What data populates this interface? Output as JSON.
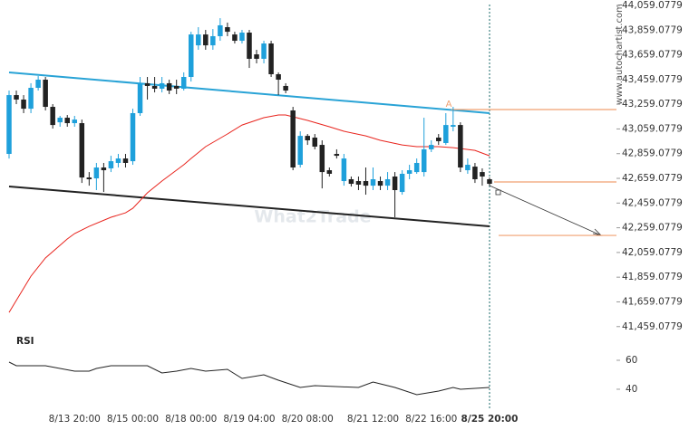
{
  "chart_data": {
    "type": "candlestick",
    "watermark": "What2Trade",
    "source": "www.autochartist.com",
    "up_color": "#1ea0db",
    "down_color": "#222222",
    "categories": [
      null,
      null,
      null,
      null,
      null,
      null,
      null,
      null,
      null,
      "8/13 20:00",
      null,
      null,
      null,
      null,
      null,
      null,
      null,
      "8/15 00:00",
      null,
      null,
      null,
      null,
      null,
      null,
      null,
      "8/18 00:00",
      null,
      null,
      null,
      null,
      null,
      null,
      null,
      "8/19 04:00",
      null,
      null,
      null,
      null,
      null,
      null,
      null,
      "8/20 08:00",
      null,
      null,
      null,
      null,
      null,
      null,
      null,
      null,
      "8/21 12:00",
      null,
      null,
      null,
      null,
      null,
      null,
      null,
      "8/22 16:00",
      null,
      null,
      null,
      null,
      null,
      null,
      null,
      "8/25 20:00"
    ],
    "open": [
      42857,
      43333,
      43297,
      43223,
      43392,
      43458,
      43238,
      43113,
      43150,
      43106,
      43106,
      42666,
      42659,
      42747,
      42740,
      42784,
      42820,
      42798,
      43187,
      43429,
      43407,
      43385,
      43429,
      43407,
      43385,
      43480,
      43736,
      43824,
      43736,
      43810,
      43883,
      43824,
      43773,
      43839,
      43663,
      43627,
      43751,
      43502,
      43407,
      43209,
      42769,
      43003,
      42989,
      42930,
      42725,
      42857,
      42637,
      42652,
      42637,
      42637,
      42600,
      42637,
      42600,
      42674,
      42549,
      42696,
      42710,
      42710,
      42894,
      42989,
      42945,
      43077,
      43091,
      42725,
      42754,
      42710,
      42652
    ],
    "high": [
      43370,
      43370,
      43333,
      43429,
      43487,
      43480,
      43260,
      43165,
      43172,
      43165,
      43135,
      42710,
      42784,
      42784,
      42842,
      42857,
      42857,
      43223,
      43480,
      43480,
      43480,
      43480,
      43458,
      43458,
      43517,
      43846,
      43883,
      43861,
      43868,
      43956,
      43920,
      43846,
      43861,
      43861,
      43700,
      43773,
      43773,
      43517,
      43429,
      43238,
      43040,
      43018,
      43018,
      42967,
      42747,
      42894,
      42857,
      42674,
      42674,
      42747,
      42747,
      42674,
      42710,
      42710,
      42725,
      42769,
      42820,
      43150,
      42967,
      43018,
      43187,
      43238,
      43113,
      42820,
      42784,
      42740,
      42666
    ],
    "low": [
      42820,
      43260,
      43187,
      43187,
      43370,
      43209,
      43062,
      43077,
      43077,
      43077,
      42622,
      42600,
      42564,
      42549,
      42710,
      42747,
      42747,
      42769,
      43165,
      43297,
      43355,
      43355,
      43341,
      43341,
      43370,
      43443,
      43700,
      43700,
      43700,
      43773,
      43810,
      43751,
      43751,
      43553,
      43590,
      43590,
      43480,
      43333,
      43348,
      42725,
      42747,
      42930,
      42894,
      42578,
      42674,
      42820,
      42600,
      42593,
      42564,
      42527,
      42564,
      42564,
      42564,
      42344,
      42527,
      42652,
      42696,
      42674,
      42872,
      42930,
      42930,
      43040,
      42710,
      42696,
      42622,
      42600,
      42600
    ],
    "close": [
      43333,
      43297,
      43223,
      43392,
      43458,
      43238,
      43091,
      43150,
      43106,
      43135,
      42666,
      42652,
      42747,
      42725,
      42798,
      42820,
      42784,
      43187,
      43429,
      43407,
      43385,
      43429,
      43370,
      43385,
      43480,
      43824,
      43824,
      43736,
      43810,
      43898,
      43846,
      43773,
      43839,
      43627,
      43627,
      43751,
      43502,
      43458,
      43370,
      42747,
      43003,
      42967,
      42916,
      42710,
      42696,
      42842,
      42820,
      42615,
      42608,
      42600,
      42652,
      42600,
      42652,
      42564,
      42696,
      42725,
      42784,
      42894,
      42930,
      42960,
      43091,
      43091,
      42747,
      42769,
      42652,
      42674,
      42615
    ],
    "ma": {
      "color": "#e8231c",
      "x": [
        0,
        3,
        5,
        8,
        9,
        11,
        14,
        16,
        17,
        19,
        21,
        24,
        25,
        27,
        30,
        32,
        35,
        37,
        38,
        41,
        44,
        46,
        49,
        51,
        54,
        56,
        59,
        61,
        64,
        66
      ],
      "values": [
        41574,
        41867,
        42014,
        42168,
        42212,
        42270,
        42344,
        42380,
        42417,
        42542,
        42637,
        42769,
        42820,
        42916,
        43018,
        43091,
        43150,
        43172,
        43172,
        43128,
        43077,
        43040,
        43003,
        42967,
        42930,
        42916,
        42916,
        42908,
        42886,
        42842
      ]
    },
    "channel_upper": {
      "color": "#29a3d6",
      "x": [
        0,
        66
      ],
      "values": [
        43517,
        43187
      ]
    },
    "channel_lower": {
      "color": "#222222",
      "x": [
        0,
        66
      ],
      "values": [
        42593,
        42271
      ]
    },
    "levels": {
      "color": "#f0a070",
      "values": [
        43216,
        42630,
        42197
      ]
    },
    "pattern_label": "A",
    "ylim": [
      41428,
      44103
    ],
    "yticks": [
      {
        "value": 44059.0779,
        "label": "44,059.0779"
      },
      {
        "value": 43859.0779,
        "label": "43,859.0779"
      },
      {
        "value": 43659.0779,
        "label": "43,659.0779"
      },
      {
        "value": 43459.0779,
        "label": "43,459.0779"
      },
      {
        "value": 43259.0779,
        "label": "43,259.0779"
      },
      {
        "value": 43059.0779,
        "label": "43,059.0779"
      },
      {
        "value": 42859.0779,
        "label": "42,859.0779"
      },
      {
        "value": 42659.0779,
        "label": "42,659.0779"
      },
      {
        "value": 42459.0779,
        "label": "42,459.0779"
      },
      {
        "value": 42259.0779,
        "label": "42,259.0779"
      },
      {
        "value": 42059.0779,
        "label": "42,059.0779"
      },
      {
        "value": 41859.0779,
        "label": "41,859.0779"
      },
      {
        "value": 41659.0779,
        "label": "41,659.0779"
      },
      {
        "value": 41459.0779,
        "label": "41,459.0779"
      }
    ],
    "rsi": {
      "title": "RSI",
      "color": "#222222",
      "ylim": [
        30.6,
        77.5
      ],
      "yticks": [
        60,
        40
      ],
      "x": [
        0,
        1,
        5,
        9,
        11,
        12,
        14,
        19,
        21,
        23,
        25,
        27,
        30,
        32,
        35,
        37,
        40,
        42,
        48,
        50,
        51,
        53,
        56,
        59,
        61,
        62,
        66
      ],
      "values": [
        58.75,
        56.25,
        56.25,
        52.5,
        52.5,
        54.38,
        56.25,
        56.25,
        51.25,
        52.5,
        54.38,
        52.5,
        53.75,
        47.5,
        50,
        46.25,
        41.25,
        42.5,
        41.25,
        45,
        43.75,
        41.25,
        36.25,
        38.75,
        41.25,
        40,
        41.25
      ]
    }
  }
}
